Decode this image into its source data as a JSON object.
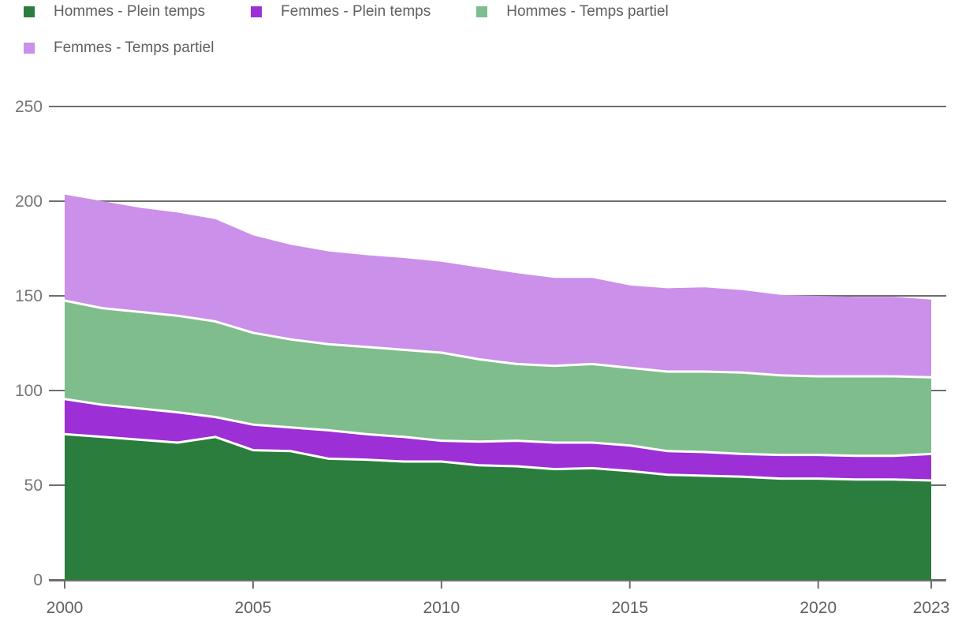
{
  "chart_data": {
    "type": "area",
    "stacked": true,
    "title": "",
    "xlabel": "",
    "ylabel": "",
    "x": [
      2000,
      2001,
      2002,
      2003,
      2004,
      2005,
      2006,
      2007,
      2008,
      2009,
      2010,
      2011,
      2012,
      2013,
      2014,
      2015,
      2016,
      2017,
      2018,
      2019,
      2020,
      2021,
      2022,
      2023
    ],
    "series": [
      {
        "name": "Hommes - Plein temps",
        "color": "#2b7d3e",
        "values": [
          77,
          75.5,
          74,
          72.5,
          75.5,
          68.5,
          68,
          64,
          63.5,
          62.5,
          62.5,
          60.5,
          60,
          58.5,
          59,
          57.5,
          55.5,
          55,
          54.5,
          53.5,
          53.5,
          53,
          53,
          52.5
        ]
      },
      {
        "name": "Femmes - Plein temps",
        "color": "#9c2fd6",
        "values": [
          18.5,
          17,
          16.5,
          16,
          10.5,
          13.5,
          12.5,
          15,
          13.5,
          13,
          11,
          12.5,
          13.5,
          14,
          13.5,
          13.5,
          12.5,
          12.5,
          12,
          12.5,
          12.5,
          12.5,
          12.5,
          14
        ]
      },
      {
        "name": "Hommes - Temps partiel",
        "color": "#7fbd8d",
        "values": [
          52,
          51,
          51,
          51,
          50.5,
          48.5,
          46.5,
          45.5,
          46,
          46,
          46.5,
          43.5,
          40.5,
          40.5,
          41.5,
          41,
          42,
          42.5,
          43,
          42,
          41.5,
          42,
          42,
          40.5
        ]
      },
      {
        "name": "Femmes - Temps partiel",
        "color": "#cb90e9",
        "values": [
          56,
          56.5,
          55,
          54.5,
          54,
          51.5,
          50,
          49,
          48.5,
          48.5,
          48,
          48.5,
          48,
          46.5,
          45.5,
          43.5,
          44,
          44.5,
          43.5,
          42.5,
          42.5,
          42,
          42,
          41
        ]
      }
    ],
    "ylim": [
      0,
      250
    ],
    "y_ticks": [
      0,
      50,
      100,
      150,
      200,
      250
    ],
    "x_ticks": [
      2000,
      2005,
      2010,
      2015,
      2020,
      2023
    ],
    "grid": true,
    "legend_position": "top",
    "colors": {
      "background": "#ffffff",
      "grid_line": "#6e6e6e",
      "series_separator": "#ffffff",
      "y_tick_label": "#757575",
      "x_tick_label": "#616161",
      "legend_text": "#616161"
    }
  }
}
